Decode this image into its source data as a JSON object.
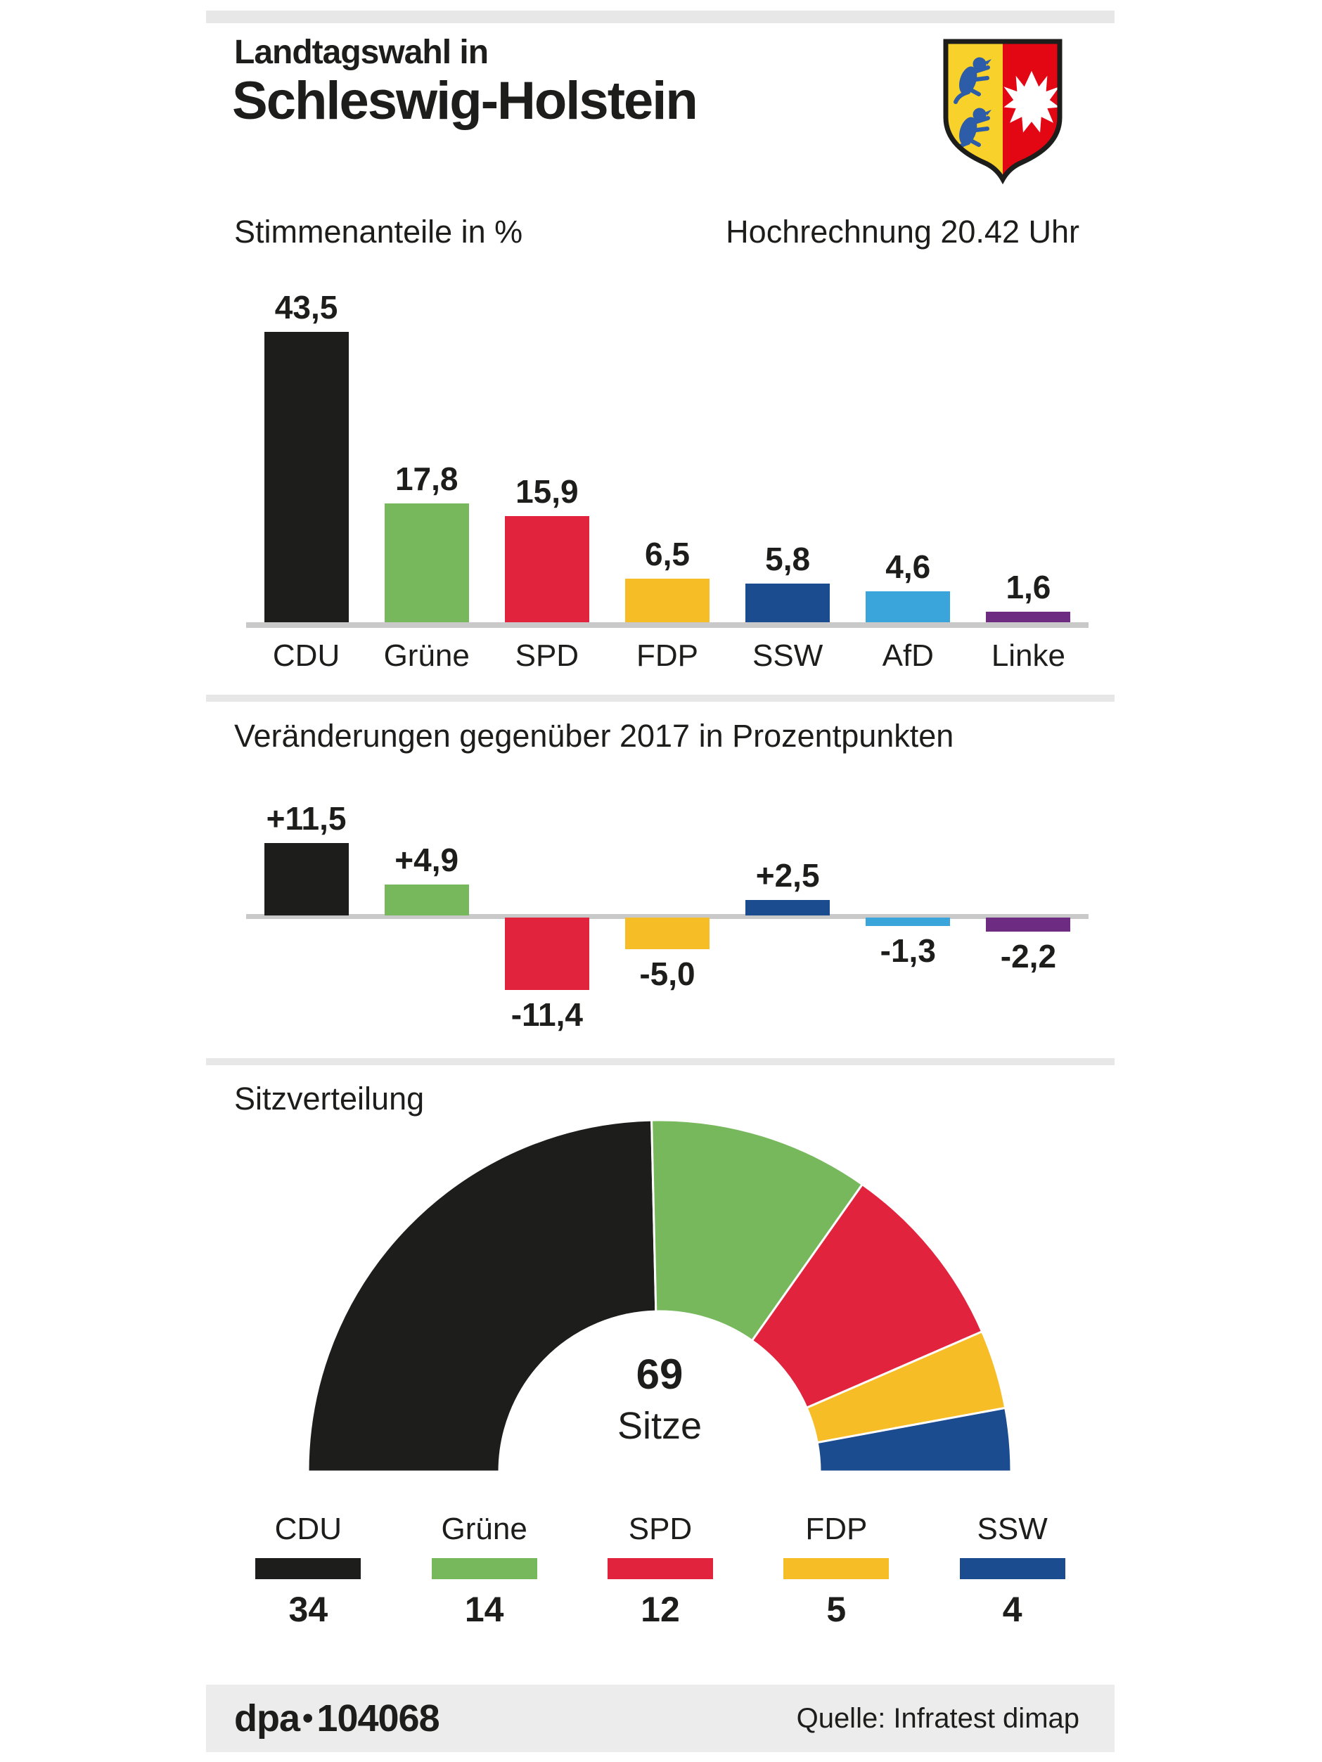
{
  "header": {
    "kicker": "Landtagswahl in",
    "title": "Schleswig-Holstein",
    "coat_of_arms": "schleswig-holstein-wappen"
  },
  "party_colors": {
    "CDU": "#1d1d1b",
    "Grüne": "#77b85d",
    "SPD": "#e2233e",
    "FDP": "#f7bd26",
    "SSW": "#1b4c8f",
    "AfD": "#39a5db",
    "Linke": "#6d2b82"
  },
  "chart_data": [
    {
      "type": "bar",
      "title": "Stimmenanteile in %",
      "annotation": "Hochrechnung 20.42 Uhr",
      "categories": [
        "CDU",
        "Grüne",
        "SPD",
        "FDP",
        "SSW",
        "AfD",
        "Linke"
      ],
      "values": [
        43.5,
        17.8,
        15.9,
        6.5,
        5.8,
        4.6,
        1.6
      ],
      "labels": [
        "43,5",
        "17,8",
        "15,9",
        "6,5",
        "5,8",
        "4,6",
        "1,6"
      ],
      "colors": [
        "#1d1d1b",
        "#77b85d",
        "#e2233e",
        "#f7bd26",
        "#1b4c8f",
        "#39a5db",
        "#6d2b82"
      ],
      "ylim": [
        0,
        45
      ],
      "grid": false,
      "legend_position": "none"
    },
    {
      "type": "bar",
      "title": "Veränderungen gegenüber 2017 in Prozentpunkten",
      "categories": [
        "CDU",
        "Grüne",
        "SPD",
        "FDP",
        "SSW",
        "AfD",
        "Linke"
      ],
      "values": [
        11.5,
        4.9,
        -11.4,
        -5.0,
        2.5,
        -1.3,
        -2.2
      ],
      "labels": [
        "+11,5",
        "+4,9",
        "-11,4",
        "-5,0",
        "+2,5",
        "-1,3",
        "-2,2"
      ],
      "colors": [
        "#1d1d1b",
        "#77b85d",
        "#e2233e",
        "#f7bd26",
        "#1b4c8f",
        "#39a5db",
        "#6d2b82"
      ],
      "ylim": [
        -12,
        12
      ],
      "grid": false,
      "legend_position": "none"
    },
    {
      "type": "pie",
      "variant": "half-donut",
      "title": "Sitzverteilung",
      "center_value": "69",
      "center_label": "Sitze",
      "categories": [
        "CDU",
        "Grüne",
        "SPD",
        "FDP",
        "SSW"
      ],
      "values": [
        34,
        14,
        12,
        5,
        4
      ],
      "seat_labels": [
        "34",
        "14",
        "12",
        "5",
        "4"
      ],
      "total": 69,
      "colors": [
        "#1d1d1b",
        "#77b85d",
        "#e2233e",
        "#f7bd26",
        "#1b4c8f"
      ],
      "legend_position": "bottom"
    }
  ],
  "footer": {
    "brand": "dpa",
    "bullet": "•",
    "id": "104068",
    "source": "Quelle: Infratest dimap"
  }
}
